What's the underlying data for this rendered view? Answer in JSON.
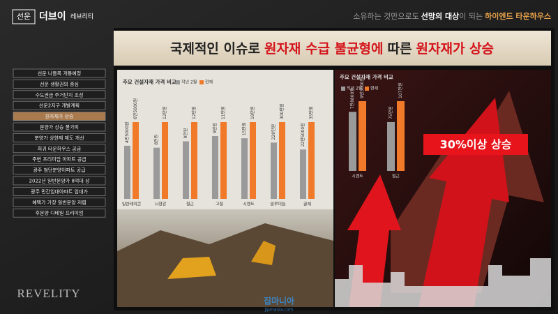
{
  "logo": {
    "badge": "선운",
    "name": "더브이",
    "sub": "레브리티"
  },
  "header": {
    "tagline": [
      "소유하는 것만으로도",
      "선망의 대상",
      "이 되는",
      "하이엔드 타운하우스"
    ]
  },
  "menu": {
    "items": [
      "선운 나들목 개통예정",
      "선운 생활권의 중심",
      "수도권급 주거단지 조성",
      "선운2지구 개발계획",
      "원자재가 상승",
      "분양가 상승 불가피",
      "분양가 상한제 제도 개선",
      "희귀 타운하우스 공급",
      "주변 프리미엄 아파트 공급",
      "광주 첨단분양아파트 공급",
      "2022년 일반분양가 8억대 상",
      "광주 민간임대아파트 임대가",
      "혜택가 가장 일반분양 저렴",
      "후분양 디테일 프리미엄"
    ],
    "active": 4
  },
  "brand": "REVELITY",
  "slide": {
    "title": [
      "국제적인 이슈로",
      "원자재 수급 불균형에",
      "따른",
      "원자재가 상승"
    ],
    "left_chart": {
      "title": "주요 건설자재 가격 비교",
      "legend": [
        "작년 2월",
        "현재"
      ],
      "colors": [
        "#9a9a9a",
        "#f07a2a"
      ],
      "groups": [
        {
          "label": "일반레미콘",
          "values": [
            45000,
            65000
          ],
          "value_labels": [
            "4만5000원",
            "6만5000원"
          ]
        },
        {
          "label": "H형강",
          "values": [
            80000,
            120000
          ],
          "value_labels": [
            "8만원",
            "12만원"
          ]
        },
        {
          "label": "철근",
          "values": [
            90000,
            120000
          ],
          "value_labels": [
            "9만원",
            "12만원"
          ]
        },
        {
          "label": "고철",
          "values": [
            90000,
            110000
          ],
          "value_labels": [
            "9만원",
            "11만원"
          ]
        },
        {
          "label": "시멘트",
          "values": [
            150000,
            190000
          ],
          "value_labels": [
            "15만원",
            "19만원"
          ]
        },
        {
          "label": "알루미늄",
          "values": [
            2200000,
            3000000
          ],
          "value_labels": [
            "220만원",
            "300만원"
          ]
        },
        {
          "label": "골재",
          "values": [
            225000,
            350000
          ],
          "value_labels": [
            "22만5000원",
            "35만원"
          ]
        }
      ]
    },
    "right_chart": {
      "title": "주요 건설자재 가격 비교",
      "legend": [
        "작년 2월",
        "현재"
      ],
      "colors": [
        "#9a9a9a",
        "#f07a2a"
      ],
      "groups": [
        {
          "label": "시멘트",
          "values": [
            78800,
            93000
          ],
          "value_labels": [
            "7만8800원",
            "9만3000원"
          ]
        },
        {
          "label": "철근",
          "values": [
            750000,
            1070000
          ],
          "value_labels": [
            "75만원",
            "107만원"
          ]
        }
      ],
      "badge": "30%이상 상승"
    }
  },
  "watermark": {
    "site": "집마니아",
    "url": "jipmania.com"
  }
}
